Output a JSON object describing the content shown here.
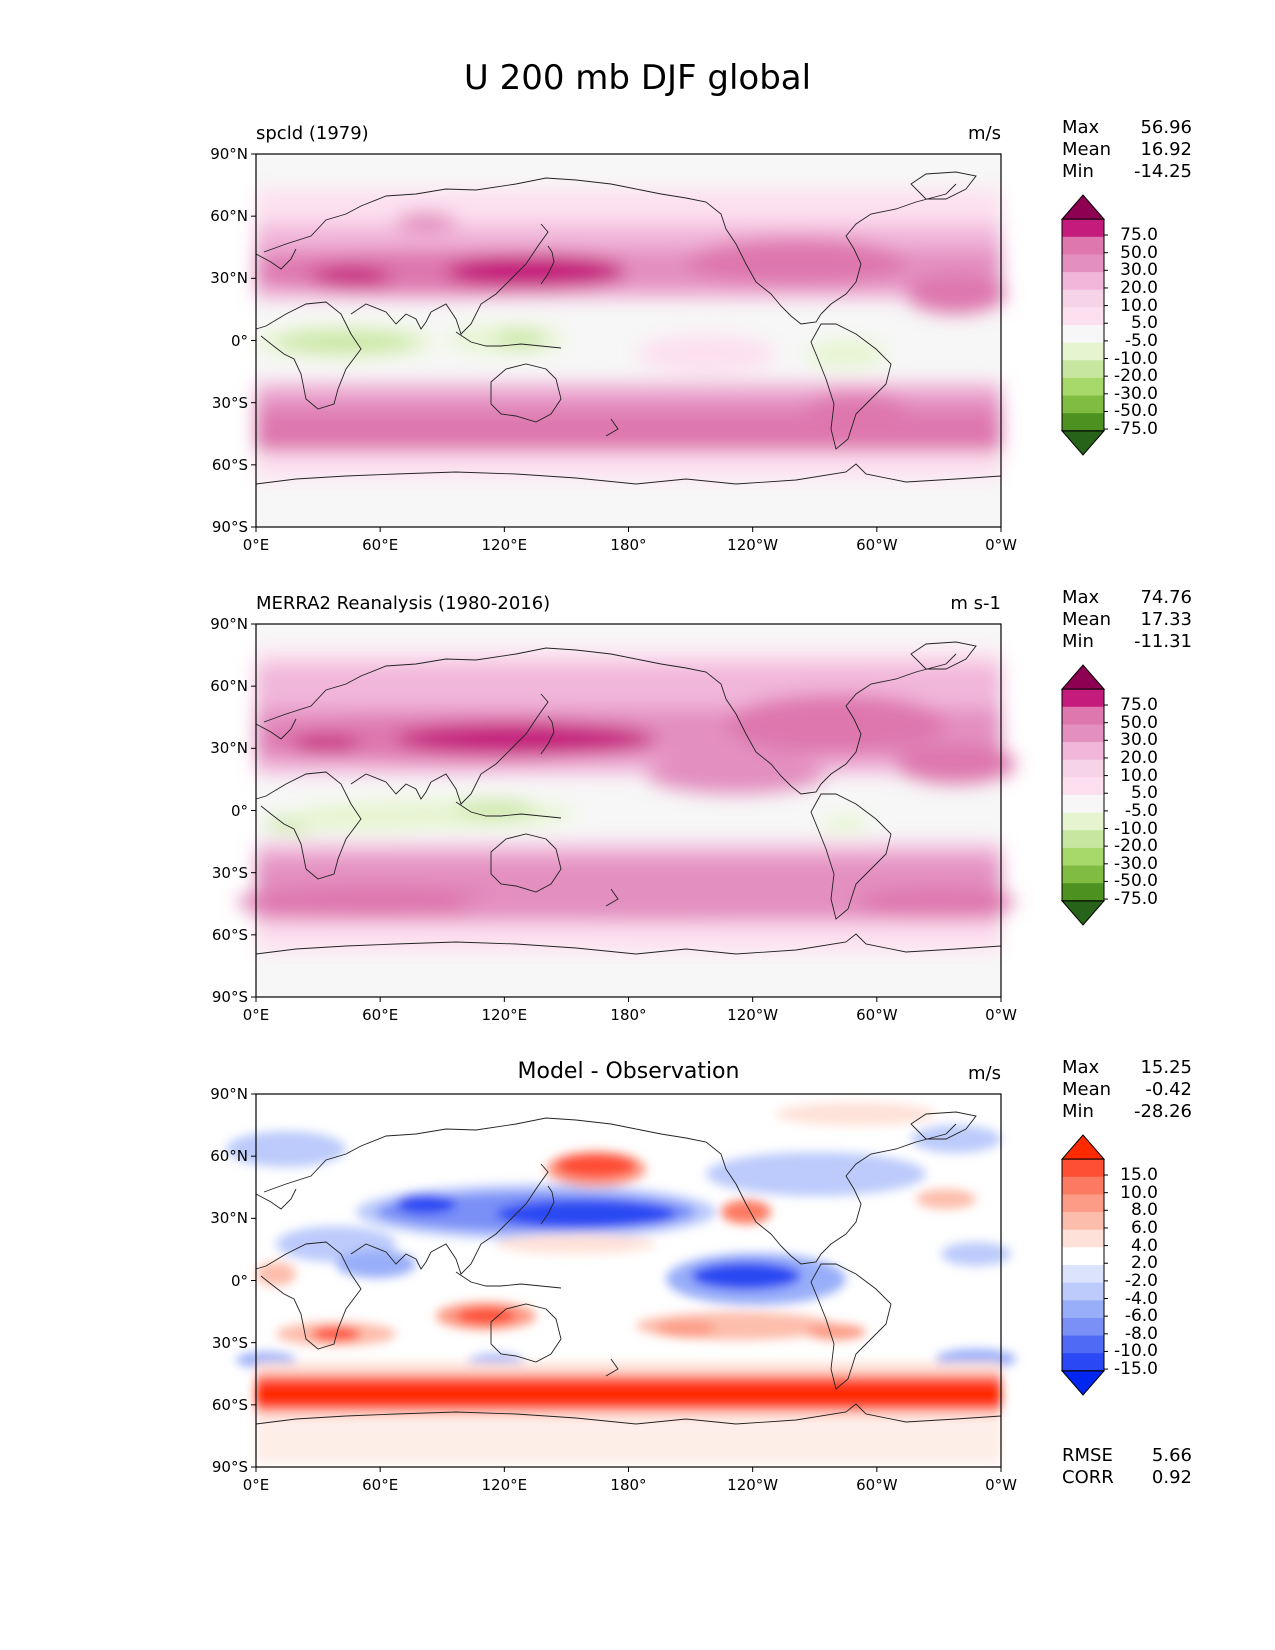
{
  "title": "U 200 mb DJF global",
  "axes": {
    "lat_labels": [
      "90°N",
      "60°N",
      "30°N",
      "0°",
      "30°S",
      "60°S",
      "90°S"
    ],
    "lon_labels": [
      "0°E",
      "60°E",
      "120°E",
      "180°",
      "120°W",
      "60°W",
      "0°W"
    ]
  },
  "panels": [
    {
      "title": "spcld (1979)",
      "units": "m/s",
      "stats": {
        "max_label": "Max",
        "max": "56.96",
        "mean_label": "Mean",
        "mean": "16.92",
        "min_label": "Min",
        "min": "-14.25"
      },
      "colorbar": {
        "ticks": [
          "75.0",
          "50.0",
          "30.0",
          "20.0",
          "10.0",
          "5.0",
          "-5.0",
          "-10.0",
          "-20.0",
          "-30.0",
          "-50.0",
          "-75.0"
        ],
        "colors": [
          "#8e0152",
          "#c51b7d",
          "#de77ae",
          "#e38fc0",
          "#f1b6da",
          "#f7d3e8",
          "#fde0ef",
          "#f7f7f7",
          "#e6f5d0",
          "#c7e6a0",
          "#a6d96a",
          "#7fbc41",
          "#4d9221",
          "#276419"
        ]
      }
    },
    {
      "title": "MERRA2 Reanalysis (1980-2016)",
      "units": "m s-1",
      "stats": {
        "max_label": "Max",
        "max": "74.76",
        "mean_label": "Mean",
        "mean": "17.33",
        "min_label": "Min",
        "min": "-11.31"
      },
      "colorbar": {
        "ticks": [
          "75.0",
          "50.0",
          "30.0",
          "20.0",
          "10.0",
          "5.0",
          "-5.0",
          "-10.0",
          "-20.0",
          "-30.0",
          "-50.0",
          "-75.0"
        ],
        "colors": [
          "#8e0152",
          "#c51b7d",
          "#de77ae",
          "#e38fc0",
          "#f1b6da",
          "#f7d3e8",
          "#fde0ef",
          "#f7f7f7",
          "#e6f5d0",
          "#c7e6a0",
          "#a6d96a",
          "#7fbc41",
          "#4d9221",
          "#276419"
        ]
      }
    },
    {
      "title": "Model - Observation",
      "units": "m/s",
      "stats": {
        "max_label": "Max",
        "max": "15.25",
        "mean_label": "Mean",
        "mean": "-0.42",
        "min_label": "Min",
        "min": "-28.26"
      },
      "metrics": {
        "rmse_label": "RMSE",
        "rmse": "5.66",
        "corr_label": "CORR",
        "corr": "0.92"
      },
      "colorbar": {
        "ticks": [
          "15.0",
          "10.0",
          "8.0",
          "6.0",
          "4.0",
          "2.0",
          "-2.0",
          "-4.0",
          "-6.0",
          "-8.0",
          "-10.0",
          "-15.0"
        ],
        "colors": [
          "#ff2a00",
          "#fe4e34",
          "#fd7a62",
          "#fc9c86",
          "#fdbdac",
          "#fee2d9",
          "#ffffff",
          "#dce4fd",
          "#bccbfb",
          "#99aef9",
          "#7a90f7",
          "#4f6af5",
          "#2a48f3",
          "#0026ef"
        ]
      }
    }
  ]
}
